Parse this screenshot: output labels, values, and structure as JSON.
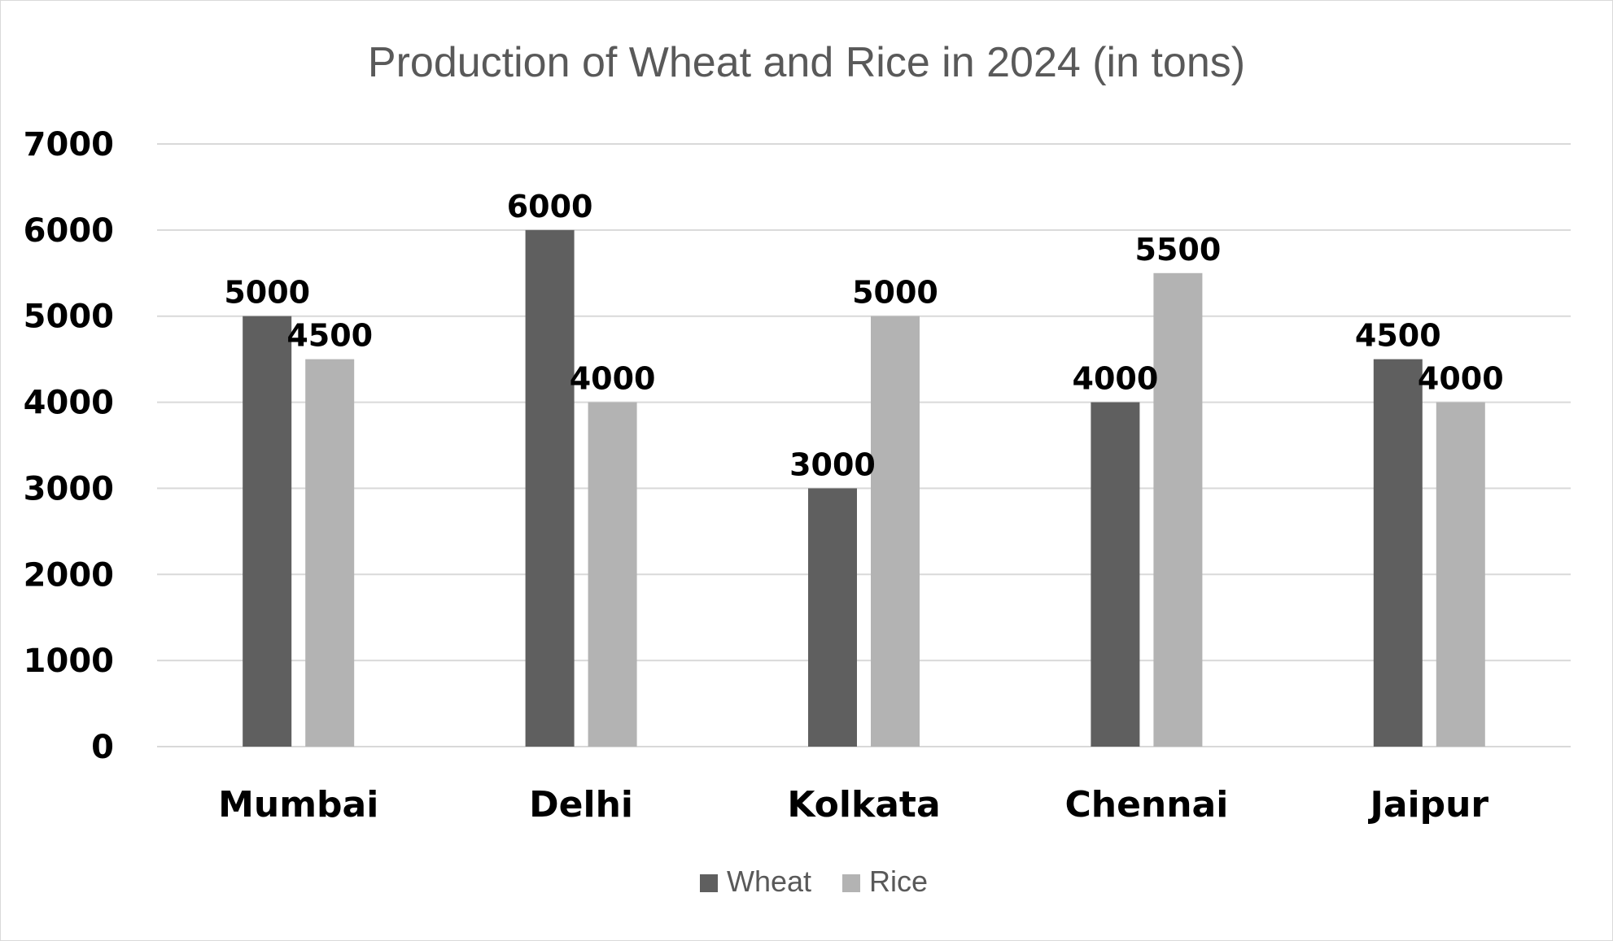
{
  "chart_data": {
    "type": "bar",
    "title": "Production of Wheat and Rice in 2024 (in tons)",
    "xlabel": "",
    "ylabel": "",
    "categories": [
      "Mumbai",
      "Delhi",
      "Kolkata",
      "Chennai",
      "Jaipur"
    ],
    "series": [
      {
        "name": "Wheat",
        "color": "#5f5f5f",
        "values": [
          5000,
          6000,
          3000,
          4000,
          4500
        ]
      },
      {
        "name": "Rice",
        "color": "#b3b3b3",
        "values": [
          4500,
          4000,
          5000,
          5500,
          4000
        ]
      }
    ],
    "ylim": [
      0,
      7000
    ],
    "yticks": [
      "0",
      "1000",
      "2000",
      "3000",
      "4000",
      "5000",
      "6000",
      "7000"
    ],
    "grid": true,
    "legend": "bottom-center",
    "data_labels": true
  }
}
